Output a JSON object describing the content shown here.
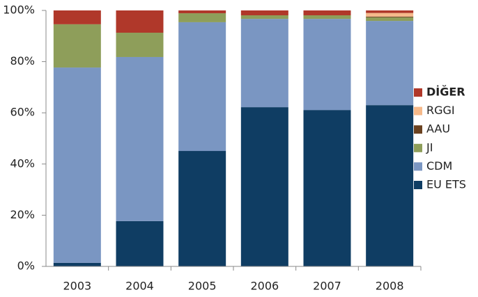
{
  "chart_data": {
    "type": "stacked-bar",
    "categories": [
      "2003",
      "2004",
      "2005",
      "2006",
      "2007",
      "2008"
    ],
    "series": [
      {
        "name": "EU ETS",
        "color": "#0f3d63",
        "values": [
          1.4,
          17.7,
          45.1,
          62.2,
          61.1,
          63.0
        ]
      },
      {
        "name": "CDM",
        "color": "#7a96c2",
        "values": [
          76.3,
          64.1,
          50.3,
          34.5,
          35.6,
          32.9
        ]
      },
      {
        "name": "JI",
        "color": "#8e9e5a",
        "values": [
          16.9,
          9.5,
          3.5,
          1.4,
          1.4,
          1.4
        ]
      },
      {
        "name": "AAU",
        "color": "#6b4220",
        "values": [
          0,
          0,
          0,
          0,
          0,
          0.3
        ]
      },
      {
        "name": "RGGI",
        "color": "#f5b98a",
        "values": [
          0,
          0,
          0,
          0,
          0,
          1.4
        ]
      },
      {
        "name": "DİĞER",
        "color": "#b0382a",
        "values": [
          5.4,
          8.7,
          1.1,
          1.9,
          1.9,
          1.0
        ]
      }
    ],
    "ylim": [
      0,
      100
    ],
    "yticks": [
      {
        "value": 0,
        "label": "0%"
      },
      {
        "value": 20,
        "label": "20%"
      },
      {
        "value": 40,
        "label": "40%"
      },
      {
        "value": 60,
        "label": "60%"
      },
      {
        "value": 80,
        "label": "80%"
      },
      {
        "value": 100,
        "label": "100%"
      }
    ],
    "legend": "right"
  }
}
